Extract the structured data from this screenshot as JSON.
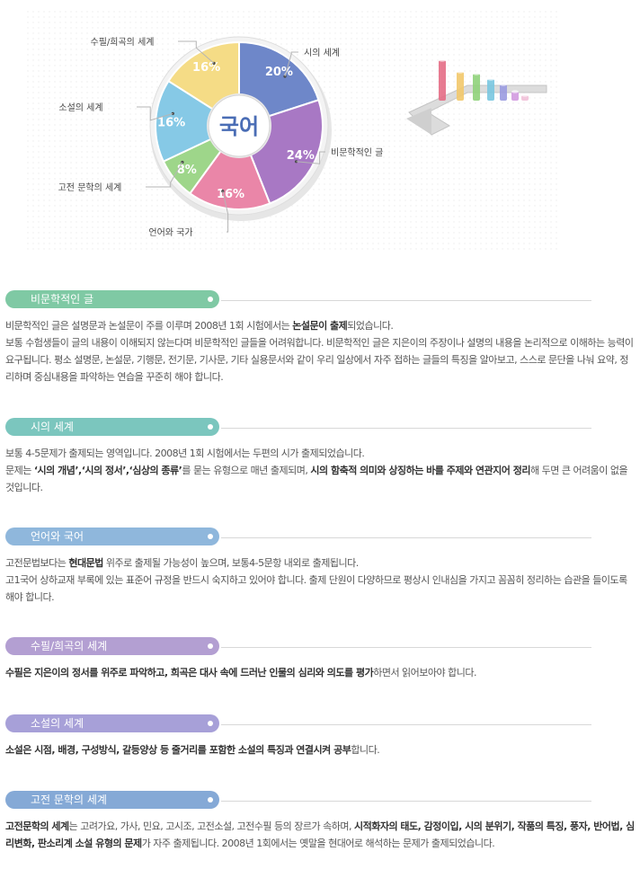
{
  "chart_data": {
    "type": "pie",
    "center_label": "국어",
    "slices": [
      {
        "name": "시의 세계",
        "value": 20,
        "label": "20%",
        "color": "#6e87c9"
      },
      {
        "name": "비문학적인 글",
        "value": 24,
        "label": "24%",
        "color": "#a878c4"
      },
      {
        "name": "언어와 국가",
        "value": 16,
        "label": "16%",
        "color": "#ea86a8"
      },
      {
        "name": "고전 문학의 세계",
        "value": 8,
        "label": "8%",
        "color": "#9ed68a"
      },
      {
        "name": "소설의 세계",
        "value": 16,
        "label": "16%",
        "color": "#86c9e6"
      },
      {
        "name": "수필/희곡의 세계",
        "value": 16,
        "label": "16%",
        "color": "#f5dc86"
      }
    ]
  },
  "sections": [
    {
      "title": "비문학적인 글",
      "color": "#7fc9a4",
      "paragraphs": [
        [
          {
            "t": "비문학적인 글은 설명문과 논설문이 주를 이루며 2008년 1회 시험에서는 "
          },
          {
            "t": "논설문이 출제",
            "b": true
          },
          {
            "t": "되었습니다."
          }
        ],
        [
          {
            "t": "보통 수험생들이 글의 내용이 이해되지 않는다며 비문학적인 글들을 어려워합니다. 비문학적인 글은 지은이의 주장이나 설명의 내용을 논리적으로 이해하는 능력이 요구됩니다. 평소 설명문, 논설문, 기행문, 전기문, 기사문, 기타 실용문서와 같이 우리 일상에서 자주 접하는 글들의 특징을 알아보고, 스스로 문단을 나눠 요약, 정리하며 중심내용을 파악하는 연습을 꾸준히 해야 합니다."
          }
        ]
      ]
    },
    {
      "title": "시의 세계",
      "color": "#7bc6be",
      "paragraphs": [
        [
          {
            "t": "보통 4-5문제가 출제되는 영역입니다. 2008년 1회 시험에서는 두편의 시가 출제되었습니다."
          }
        ],
        [
          {
            "t": "문제는 "
          },
          {
            "t": "‘시의 개념’,‘시의 정서’,‘심상의 종류’",
            "b": true
          },
          {
            "t": "를 묻는 유형으로 매년 출제되며, "
          },
          {
            "t": "시의 함축적 의미와 상징하는 바를 주제와 연관지어 정리",
            "b": true
          },
          {
            "t": "해 두면 큰 어려움이 없을 것입니다."
          }
        ]
      ]
    },
    {
      "title": "언어와 국어",
      "color": "#8fb7dc",
      "paragraphs": [
        [
          {
            "t": "고전문법보다는 "
          },
          {
            "t": "현대문법",
            "b": true
          },
          {
            "t": " 위주로 출제될 가능성이 높으며, 보통4-5문항 내외로 출제됩니다."
          }
        ],
        [
          {
            "t": "고1국어 상하교재 부록에 있는 표준어 규정을 반드시 숙지하고 있어야 합니다. 출제 단원이 다양하므로 평상시 인내심을 가지고 꼼꼼히 정리하는 습관을 들이도록 해야 합니다."
          }
        ]
      ]
    },
    {
      "title": "수필/희곡의 세계",
      "color": "#b39fd2",
      "paragraphs": [
        [
          {
            "t": "수필은 지은이의 정서를 위주로 파악하고, 희곡은 대사 속에 드러난 인물의 심리와 의도를 평가",
            "b": true
          },
          {
            "t": "하면서 읽어보아야 합니다."
          }
        ]
      ]
    },
    {
      "title": "소설의 세계",
      "color": "#a7a0d8",
      "paragraphs": [
        [
          {
            "t": "소설은 시점, 배경, 구성방식, 갈등양상 등 줄거리를 포함한 소설의 특징과 연결시켜 공부",
            "b": true
          },
          {
            "t": "합니다."
          }
        ]
      ]
    },
    {
      "title": "고전 문학의 세계",
      "color": "#85a9d6",
      "paragraphs": [
        [
          {
            "t": "고전문학의 세계",
            "b": true
          },
          {
            "t": "는 고려가요, 가사, 민요, 고시조, 고전소설, 고전수필 등의 장르가 속하며, "
          },
          {
            "t": "시적화자의 태도, 감정이입, 시의 분위기, 작품의 특징, 풍자, 반어법, 심리변화, 판소리계 소설 유형의 문제",
            "b": true
          },
          {
            "t": "가 자주 출제됩니다. 2008년 1회에서는 옛말을 현대어로 해석하는 문제가 출제되었습니다."
          }
        ]
      ]
    }
  ]
}
